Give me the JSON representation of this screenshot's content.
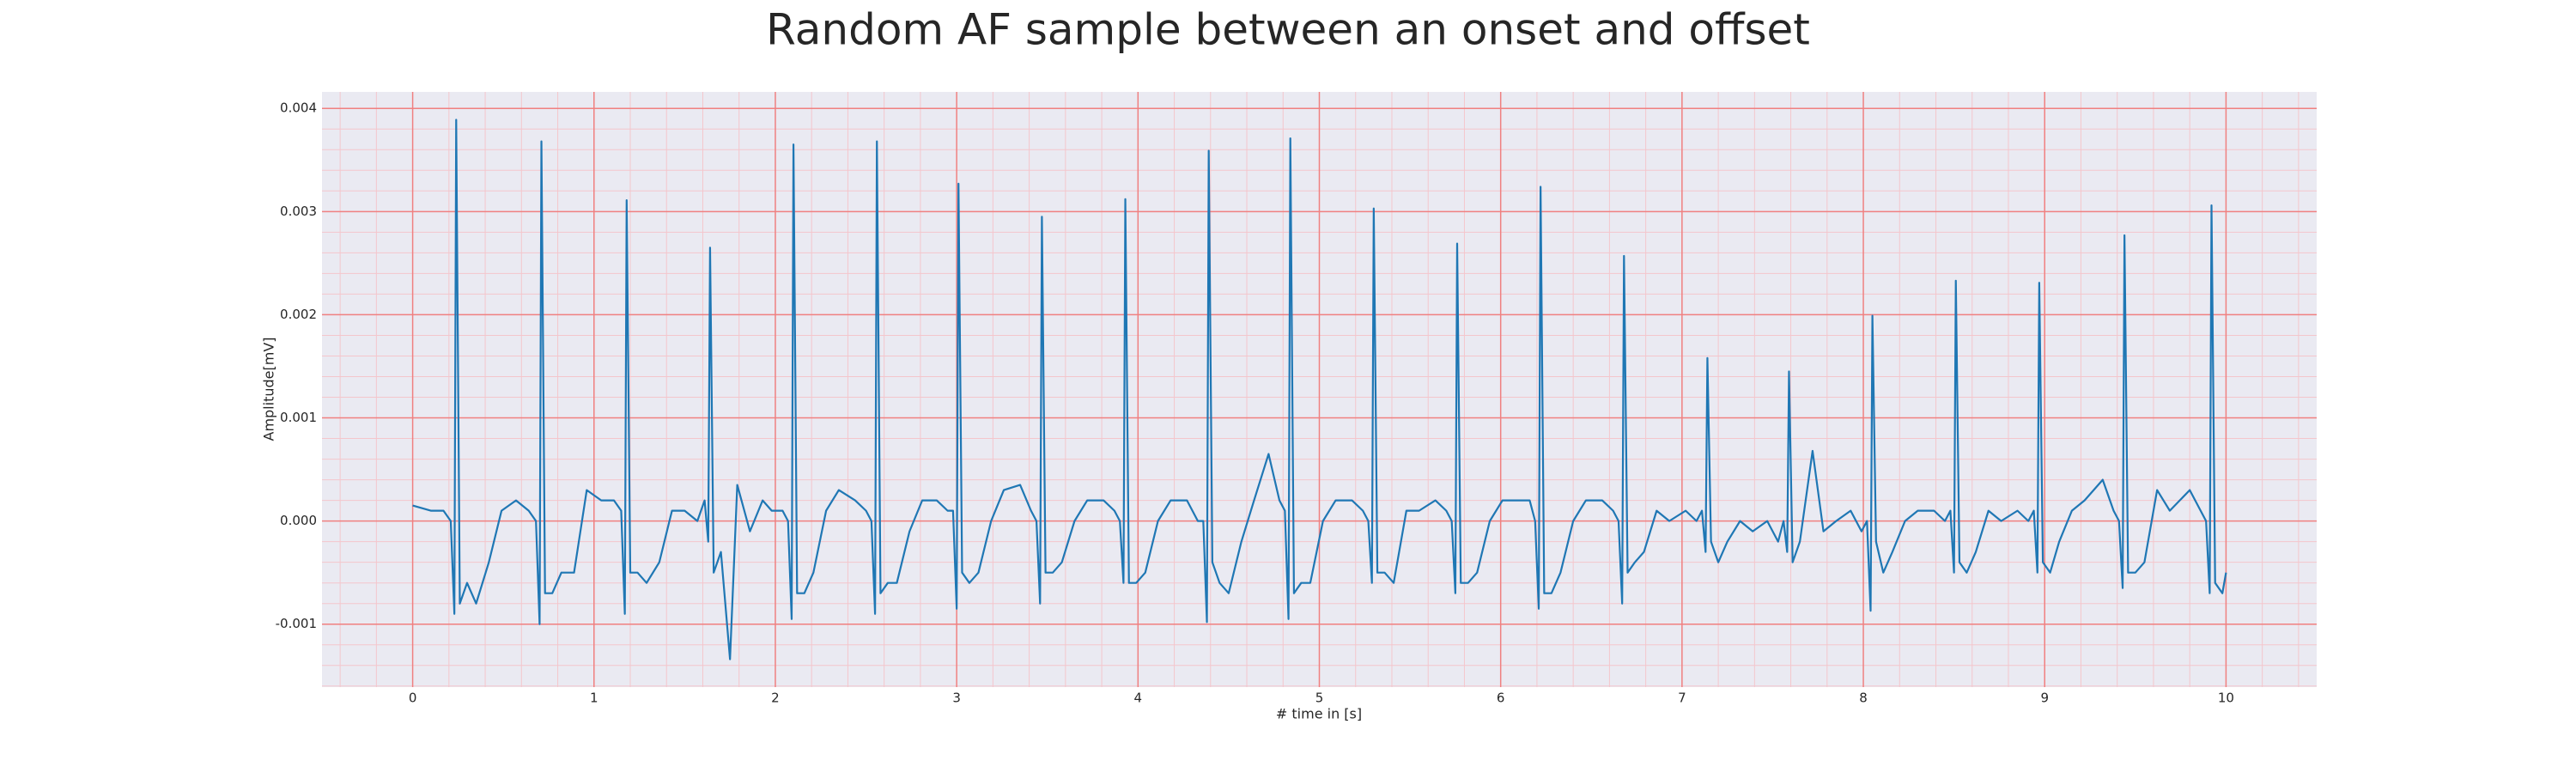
{
  "chart_data": {
    "type": "line",
    "title": "Random AF sample between an onset and offset",
    "xlabel": "# time in [s]",
    "ylabel": "Amplitude[mV]",
    "xlim": [
      -0.5,
      10.5
    ],
    "ylim": [
      -0.00161,
      0.00416
    ],
    "xticks": [
      0,
      1,
      2,
      3,
      4,
      5,
      6,
      7,
      8,
      9,
      10
    ],
    "yticks": [
      -0.001,
      {
        "value": 0,
        "label": "0.000"
      },
      0.001,
      0.002,
      0.003,
      0.004
    ],
    "grid": true,
    "minor_grid": true,
    "grid_color": "#f08080",
    "minor_grid_color": "#f4c6cc",
    "background": "#eaeaf2",
    "x": [
      0,
      0.1,
      0.17,
      0.21,
      0.23,
      0.24,
      0.26,
      0.3,
      0.35,
      0.42,
      0.49,
      0.57,
      0.64,
      0.68,
      0.7,
      0.71,
      0.73,
      0.77,
      0.82,
      0.89,
      0.96,
      1.04,
      1.11,
      1.15,
      1.17,
      1.18,
      1.2,
      1.24,
      1.29,
      1.36,
      1.43,
      1.5,
      1.57,
      1.61,
      1.63,
      1.64,
      1.66,
      1.7,
      1.75,
      1.79,
      1.86,
      1.93,
      1.98,
      2.04,
      2.07,
      2.09,
      2.1,
      2.12,
      2.16,
      2.21,
      2.28,
      2.35,
      2.44,
      2.5,
      2.53,
      2.55,
      2.56,
      2.58,
      2.62,
      2.67,
      2.74,
      2.81,
      2.89,
      2.95,
      2.98,
      3.0,
      3.01,
      3.03,
      3.07,
      3.12,
      3.19,
      3.26,
      3.35,
      3.41,
      3.44,
      3.46,
      3.47,
      3.49,
      3.53,
      3.58,
      3.65,
      3.72,
      3.81,
      3.87,
      3.9,
      3.92,
      3.93,
      3.95,
      3.99,
      4.04,
      4.11,
      4.18,
      4.27,
      4.33,
      4.36,
      4.38,
      4.39,
      4.41,
      4.45,
      4.5,
      4.57,
      4.64,
      4.72,
      4.78,
      4.81,
      4.83,
      4.84,
      4.86,
      4.9,
      4.95,
      5.02,
      5.09,
      5.18,
      5.24,
      5.27,
      5.29,
      5.3,
      5.32,
      5.36,
      5.41,
      5.48,
      5.55,
      5.64,
      5.7,
      5.73,
      5.75,
      5.76,
      5.78,
      5.82,
      5.87,
      5.94,
      6.01,
      6.1,
      6.16,
      6.19,
      6.21,
      6.22,
      6.24,
      6.28,
      6.33,
      6.4,
      6.47,
      6.56,
      6.62,
      6.65,
      6.67,
      6.68,
      6.7,
      6.74,
      6.79,
      6.86,
      6.93,
      7.02,
      7.08,
      7.11,
      7.13,
      7.14,
      7.16,
      7.2,
      7.25,
      7.32,
      7.39,
      7.47,
      7.53,
      7.56,
      7.58,
      7.59,
      7.61,
      7.65,
      7.72,
      7.78,
      7.85,
      7.93,
      7.99,
      8.02,
      8.04,
      8.05,
      8.07,
      8.11,
      8.16,
      8.23,
      8.3,
      8.39,
      8.45,
      8.48,
      8.5,
      8.51,
      8.53,
      8.57,
      8.62,
      8.69,
      8.76,
      8.85,
      8.91,
      8.94,
      8.96,
      8.97,
      8.99,
      9.03,
      9.08,
      9.15,
      9.22,
      9.32,
      9.38,
      9.41,
      9.43,
      9.44,
      9.46,
      9.5,
      9.55,
      9.62,
      9.69,
      9.8,
      9.86,
      9.89,
      9.91,
      9.92,
      9.94,
      9.98,
      10.0
    ],
    "series": [
      {
        "color": "#1f77b4",
        "values": [
          0.00015,
          0.0001,
          0.0001,
          0.0,
          -0.0009,
          0.00389,
          -0.0008,
          -0.0006,
          -0.0008,
          -0.0004,
          0.0001,
          0.0002,
          0.0001,
          0.0,
          -0.001,
          0.00368,
          -0.0007,
          -0.0007,
          -0.0005,
          -0.0005,
          0.0003,
          0.0002,
          0.0002,
          0.0001,
          -0.0009,
          0.00311,
          -0.0005,
          -0.0005,
          -0.0006,
          -0.0004,
          0.0001,
          0.0001,
          0.0,
          0.0002,
          -0.0002,
          0.00265,
          -0.0005,
          -0.0003,
          -0.00134,
          0.00035,
          -0.0001,
          0.0002,
          0.0001,
          0.0001,
          0.0,
          -0.00095,
          0.00365,
          -0.0007,
          -0.0007,
          -0.0005,
          0.0001,
          0.0003,
          0.0002,
          0.0001,
          0.0,
          -0.0009,
          0.00368,
          -0.0007,
          -0.0006,
          -0.0006,
          -0.0001,
          0.0002,
          0.0002,
          0.0001,
          0.0001,
          -0.00085,
          0.00327,
          -0.0005,
          -0.0006,
          -0.0005,
          0.0,
          0.0003,
          0.00035,
          0.0001,
          0.0,
          -0.0008,
          0.00295,
          -0.0005,
          -0.0005,
          -0.0004,
          0.0,
          0.0002,
          0.0002,
          0.0001,
          0.0,
          -0.0006,
          0.00312,
          -0.0006,
          -0.0006,
          -0.0005,
          0.0,
          0.0002,
          0.0002,
          0.0,
          0.0,
          -0.00098,
          0.00359,
          -0.0004,
          -0.0006,
          -0.0007,
          -0.0002,
          0.0002,
          0.00065,
          0.0002,
          0.0001,
          -0.00095,
          0.00371,
          -0.0007,
          -0.0006,
          -0.0006,
          0.0,
          0.0002,
          0.0002,
          0.0001,
          0.0,
          -0.0006,
          0.00303,
          -0.0005,
          -0.0005,
          -0.0006,
          0.0001,
          0.0001,
          0.0002,
          0.0001,
          0.0,
          -0.0007,
          0.00269,
          -0.0006,
          -0.0006,
          -0.0005,
          0.0,
          0.0002,
          0.0002,
          0.0002,
          0.0,
          -0.00085,
          0.00324,
          -0.0007,
          -0.0007,
          -0.0005,
          0.0,
          0.0002,
          0.0002,
          0.0001,
          0.0,
          -0.0008,
          0.00257,
          -0.0005,
          -0.0004,
          -0.0003,
          0.0001,
          0.0,
          0.0001,
          0.0,
          0.0001,
          -0.0003,
          0.00158,
          -0.0002,
          -0.0004,
          -0.0002,
          0.0,
          -0.0001,
          0.0,
          -0.0002,
          0.0,
          -0.0003,
          0.00145,
          -0.0004,
          -0.0002,
          0.00068,
          -0.0001,
          0.0,
          0.0001,
          -0.0001,
          0.0,
          -0.00087,
          0.00199,
          -0.0002,
          -0.0005,
          -0.0003,
          0.0,
          0.0001,
          0.0001,
          0.0,
          0.0001,
          -0.0005,
          0.00233,
          -0.0004,
          -0.0005,
          -0.0003,
          0.0001,
          0.0,
          0.0001,
          0.0,
          0.0001,
          -0.0005,
          0.00231,
          -0.0004,
          -0.0005,
          -0.0002,
          0.0001,
          0.0002,
          0.0004,
          0.0001,
          0.0,
          -0.00065,
          0.00277,
          -0.0005,
          -0.0005,
          -0.0004,
          0.0003,
          0.0001,
          0.0003,
          0.0001,
          0.0,
          -0.0007,
          0.00306,
          -0.0006,
          -0.0007,
          -0.0005
        ]
      }
    ]
  }
}
